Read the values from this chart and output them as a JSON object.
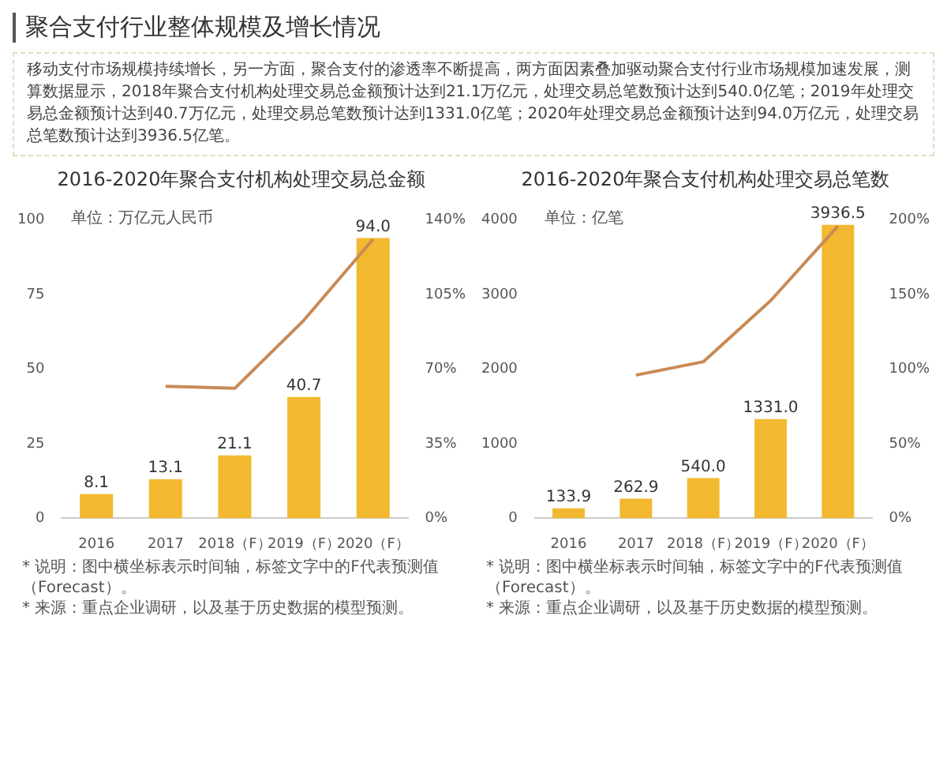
{
  "chart_data": [
    {
      "type": "other",
      "title": "聚合支付行业整体规模及增长情况",
      "annotations": [
        "移动支付市场规模持续增长，另一方面，聚合支付的渗透率不断提高，两方面因素叠加驱动聚合支付行业市场规模加速发展，测算数据显示，2018年聚合支付机构处理交易总金额预计达到21.1万亿元，处理交易总笔数预计达到540.0亿笔；2019年处理交易总金额预计达到40.7万亿元，处理交易总笔数预计达到1331.0亿笔；2020年处理交易总金额预计达到94.0万亿元，处理交易总笔数预计达到3936.5亿笔。"
      ]
    },
    {
      "type": "bar",
      "title": "2016-2020年聚合支付机构处理交易总金额",
      "ylabel": "单位：万亿元人民币",
      "categories": [
        "2016",
        "2017",
        "2018（F）",
        "2019（F）",
        "2020（F）"
      ],
      "marker": "none",
      "series": [
        {
          "type": "bar",
          "color": "#f2b930",
          "values": [
            8.1,
            13.1,
            21.1,
            40.7,
            94.0
          ],
          "value_labels": [
            "8.1",
            "13.1",
            "21.1",
            "40.7",
            "94.0"
          ]
        },
        {
          "type": "line",
          "axis": "y2",
          "color": "#c98a55",
          "values": [
            null,
            62,
            61,
            93,
            131
          ]
        }
      ],
      "ylim": [
        0,
        100
      ],
      "yticks": [
        0,
        25,
        50,
        75,
        100
      ],
      "y2lim": [
        0,
        140
      ],
      "y2ticks": [
        {
          "value": 0,
          "label": "0%"
        },
        {
          "value": 35,
          "label": "35%"
        },
        {
          "value": 70,
          "label": "70%"
        },
        {
          "value": 105,
          "label": "105%"
        },
        {
          "value": 140,
          "label": "140%"
        }
      ],
      "annotations": [
        "* 说明：图中横坐标表示时间轴，标签文字中的F代表预测值（Forecast）。",
        "* 来源：重点企业调研，以及基于历史数据的模型预测。"
      ]
    },
    {
      "type": "bar",
      "title": "2016-2020年聚合支付机构处理交易总笔数",
      "ylabel": "单位：亿笔",
      "categories": [
        "2016",
        "2017",
        "2018（F）",
        "2019（F）",
        "2020（F）"
      ],
      "marker": "none",
      "series": [
        {
          "type": "bar",
          "color": "#f2b930",
          "values": [
            133.9,
            262.9,
            540.0,
            1331.0,
            3936.5
          ],
          "value_labels": [
            "133.9",
            "262.9",
            "540.0",
            "1331.0",
            "3936.5"
          ]
        },
        {
          "type": "line",
          "axis": "y2",
          "color": "#c98a55",
          "values": [
            null,
            96,
            105,
            146,
            196
          ]
        }
      ],
      "ylim": [
        0,
        4000
      ],
      "yticks": [
        0,
        1000,
        2000,
        3000,
        4000
      ],
      "y2lim": [
        0,
        200
      ],
      "y2ticks": [
        {
          "value": 0,
          "label": "0%"
        },
        {
          "value": 50,
          "label": "50%"
        },
        {
          "value": 100,
          "label": "100%"
        },
        {
          "value": 150,
          "label": "150%"
        },
        {
          "value": 200,
          "label": "200%"
        }
      ],
      "annotations": [
        "* 说明：图中横坐标表示时间轴，标签文字中的F代表预测值（Forecast）。",
        "* 来源：重点企业调研，以及基于历史数据的模型预测。"
      ]
    }
  ]
}
